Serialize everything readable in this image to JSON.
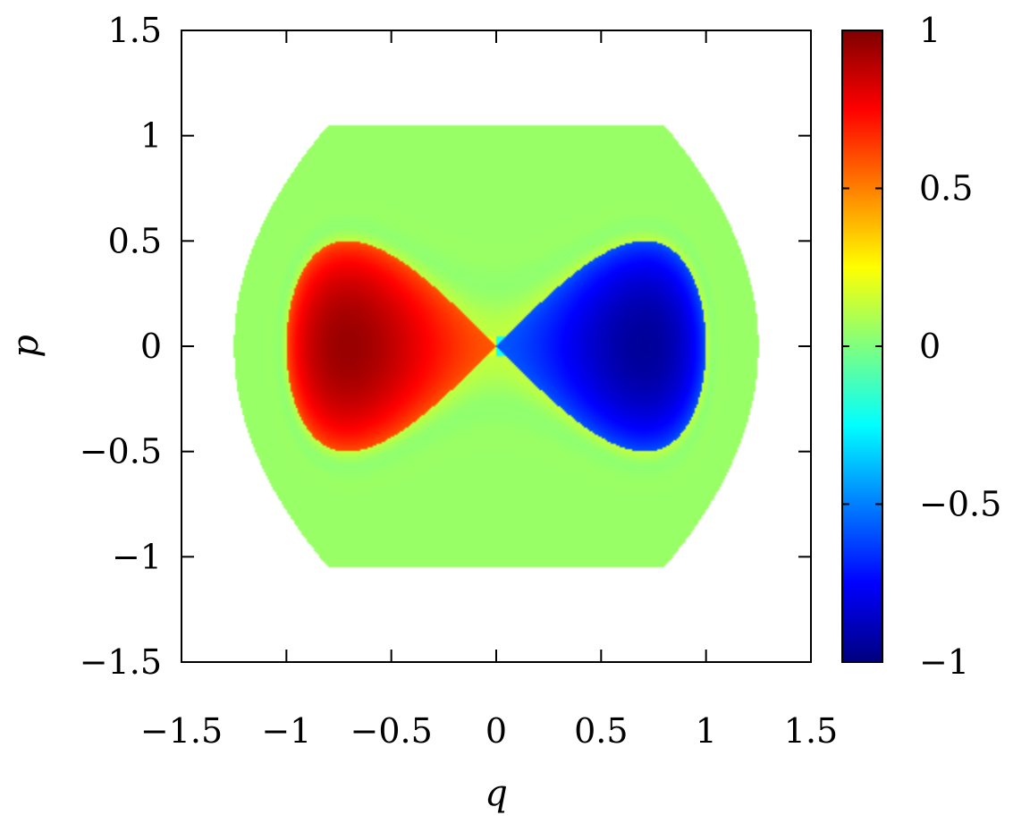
{
  "chart_data": {
    "type": "heatmap",
    "title": "",
    "xlabel": "q",
    "ylabel": "p",
    "xlim": [
      -1.5,
      1.5
    ],
    "ylim": [
      -1.5,
      1.5
    ],
    "x_ticks": [
      {
        "value": -1.5,
        "label": "−1.5"
      },
      {
        "value": -1,
        "label": "−1"
      },
      {
        "value": -0.5,
        "label": "−0.5"
      },
      {
        "value": 0,
        "label": "0"
      },
      {
        "value": 0.5,
        "label": "0.5"
      },
      {
        "value": 1,
        "label": "1"
      },
      {
        "value": 1.5,
        "label": "1.5"
      }
    ],
    "y_ticks": [
      {
        "value": -1.5,
        "label": "−1.5"
      },
      {
        "value": -1,
        "label": "−1"
      },
      {
        "value": -0.5,
        "label": "−0.5"
      },
      {
        "value": 0,
        "label": "0"
      },
      {
        "value": 0.5,
        "label": "0.5"
      },
      {
        "value": 1,
        "label": "1"
      },
      {
        "value": 1.5,
        "label": "1.5"
      }
    ],
    "colorbar": {
      "range": [
        -1,
        1
      ],
      "colormap": "jet",
      "ticks": [
        {
          "value": 1,
          "label": "1"
        },
        {
          "value": 0.5,
          "label": "0.5"
        },
        {
          "value": 0,
          "label": "0"
        },
        {
          "value": -0.5,
          "label": "−0.5"
        },
        {
          "value": -1,
          "label": "−1"
        }
      ]
    },
    "domain_region": {
      "q_extent": [
        -1.25,
        1.25
      ],
      "p_extent": [
        -1.05,
        1.05
      ],
      "value": 0.05
    },
    "lobes": [
      {
        "q_range": [
          -1.0,
          0.0
        ],
        "p_max": 0.5,
        "peak_value": 0.95,
        "peak_q": -0.72
      },
      {
        "q_range": [
          0.0,
          1.0
        ],
        "p_max": 0.5,
        "peak_value": -0.95,
        "peak_q": 0.72
      }
    ],
    "grid": false,
    "legend": "none"
  }
}
